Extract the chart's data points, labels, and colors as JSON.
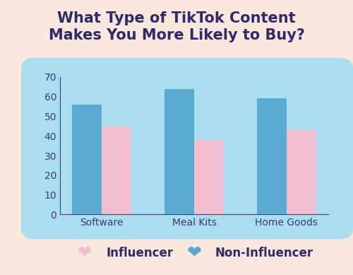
{
  "title": "What Type of TikTok Content\nMakes You More Likely to Buy?",
  "categories": [
    "Software",
    "Meal Kits",
    "Home Goods"
  ],
  "non_influencer_values": [
    56,
    64,
    59
  ],
  "influencer_values": [
    45,
    38,
    43
  ],
  "non_influencer_color": "#5AAAD4",
  "influencer_color": "#F0BED0",
  "background_color": "#FAE8DF",
  "chart_bg_color": "#AADDEE",
  "title_color": "#2D2B6B",
  "tick_color": "#3D3A7A",
  "ylim": [
    0,
    70
  ],
  "yticks": [
    0,
    10,
    20,
    30,
    40,
    50,
    60,
    70
  ],
  "legend_influencer": "Influencer",
  "legend_non_influencer": "Non-Influencer",
  "bar_width": 0.32,
  "title_fontsize": 15,
  "tick_fontsize": 10,
  "legend_fontsize": 12
}
